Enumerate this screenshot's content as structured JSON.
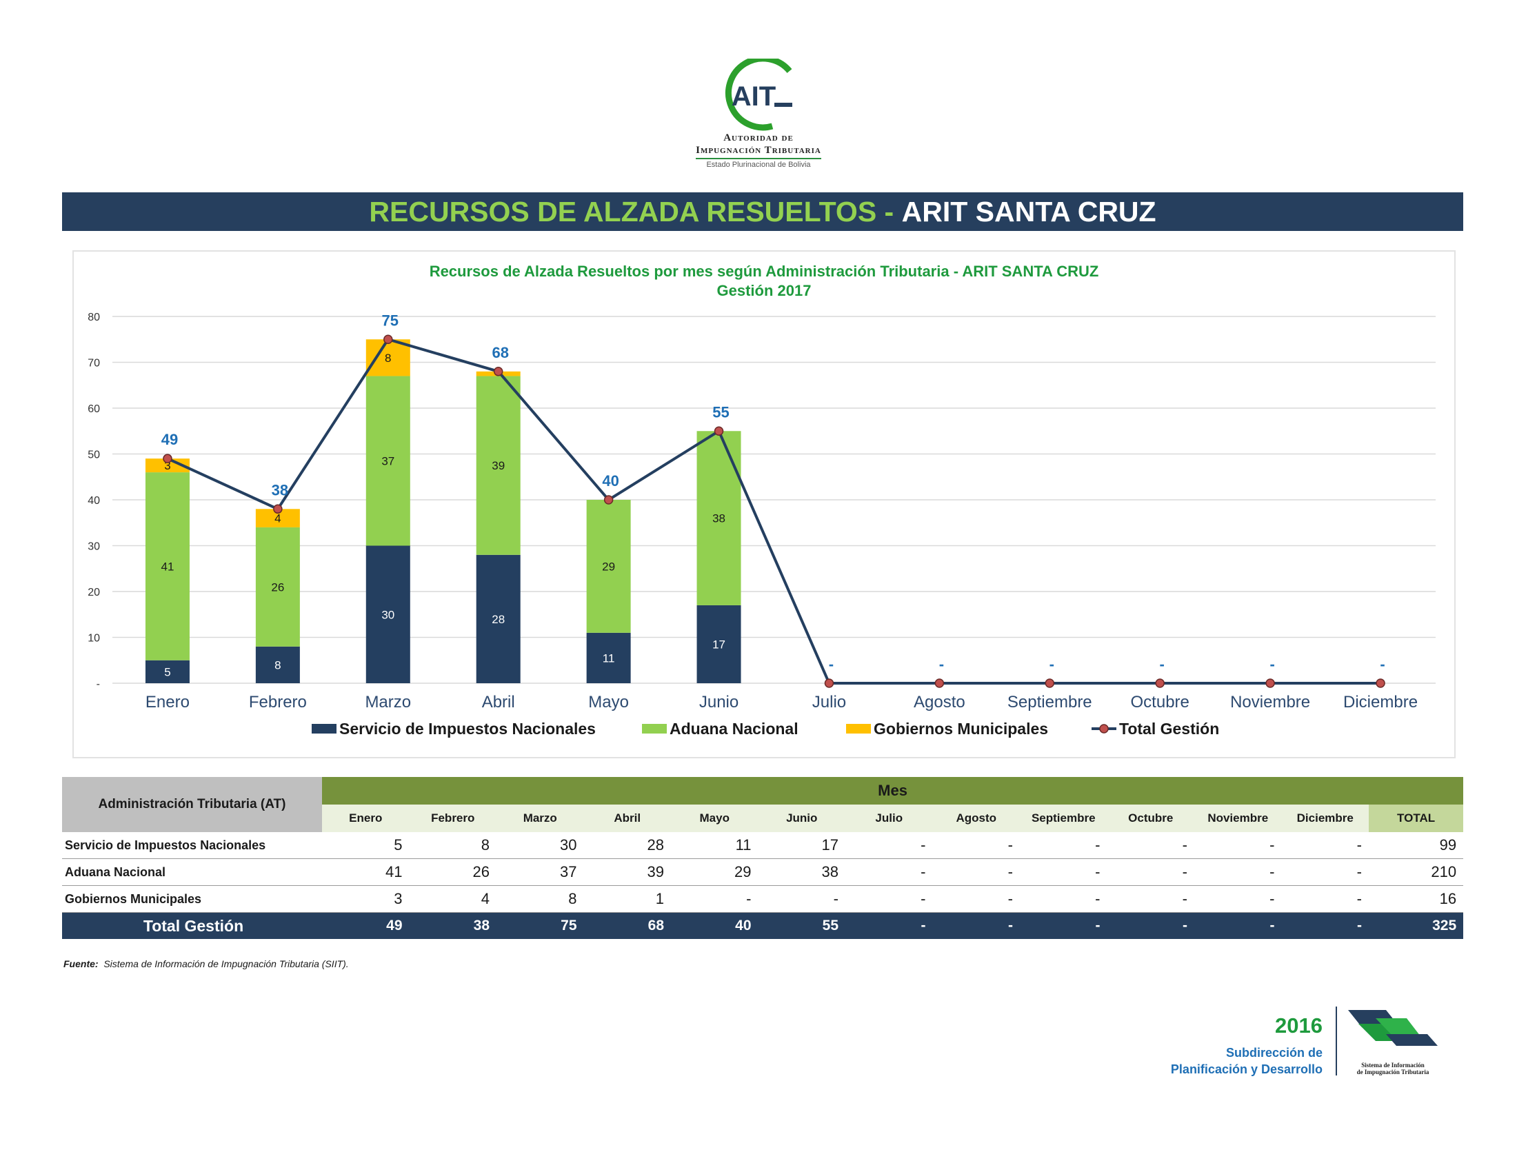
{
  "logo": {
    "mark": "AIT",
    "line1": "Autoridad de",
    "line2": "Impugnación Tributaria",
    "line3": "Estado Plurinacional de Bolivia"
  },
  "header": {
    "title_green": "RECURSOS DE ALZADA RESUELTOS -",
    "title_white": "ARIT SANTA CRUZ"
  },
  "chart_data": {
    "type": "bar",
    "title": "Recursos de Alzada Resueltos por mes según Administración Tributaria - ARIT SANTA CRUZ",
    "subtitle": "Gestión 2017",
    "categories": [
      "Enero",
      "Febrero",
      "Marzo",
      "Abril",
      "Mayo",
      "Junio",
      "Julio",
      "Agosto",
      "Septiembre",
      "Octubre",
      "Noviembre",
      "Diciembre"
    ],
    "ylim": [
      0,
      80
    ],
    "yticks": [
      "-",
      "10",
      "20",
      "30",
      "40",
      "50",
      "60",
      "70",
      "80"
    ],
    "grid": true,
    "legend_placement": "bottom",
    "stacked": true,
    "series": [
      {
        "name": "Servicio de Impuestos Nacionales",
        "type": "bar",
        "color": "#243f60",
        "values": [
          5,
          8,
          30,
          28,
          11,
          17,
          0,
          0,
          0,
          0,
          0,
          0
        ],
        "labels": [
          "5",
          "8",
          "30",
          "28",
          "11",
          "17",
          "",
          "",
          "",
          "",
          "",
          ""
        ]
      },
      {
        "name": "Aduana Nacional",
        "type": "bar",
        "color": "#92d050",
        "values": [
          41,
          26,
          37,
          39,
          29,
          38,
          0,
          0,
          0,
          0,
          0,
          0
        ],
        "labels": [
          "41",
          "26",
          "37",
          "39",
          "29",
          "38",
          "",
          "",
          "",
          "",
          "",
          ""
        ]
      },
      {
        "name": "Gobiernos Municipales",
        "type": "bar",
        "color": "#ffc000",
        "values": [
          3,
          4,
          8,
          1,
          0,
          0,
          0,
          0,
          0,
          0,
          0,
          0
        ],
        "labels": [
          "3",
          "4",
          "8",
          "",
          "",
          "",
          "",
          "",
          "",
          "",
          "",
          ""
        ]
      },
      {
        "name": "Total Gestión",
        "type": "line",
        "color": "#243f60",
        "marker_color": "#c0504d",
        "values": [
          49,
          38,
          75,
          68,
          40,
          55,
          0,
          0,
          0,
          0,
          0,
          0
        ],
        "labels": [
          "49",
          "38",
          "75",
          "68",
          "40",
          "55",
          "-",
          "-",
          "-",
          "-",
          "-",
          "-"
        ]
      }
    ]
  },
  "table": {
    "header_at": "Administración Tributaria (AT)",
    "header_mes": "Mes",
    "months": [
      "Enero",
      "Febrero",
      "Marzo",
      "Abril",
      "Mayo",
      "Junio",
      "Julio",
      "Agosto",
      "Septiembre",
      "Octubre",
      "Noviembre",
      "Diciembre"
    ],
    "header_total": "TOTAL",
    "rows": [
      {
        "label": "Servicio de Impuestos Nacionales",
        "values": [
          "5",
          "8",
          "30",
          "28",
          "11",
          "17",
          "-",
          "-",
          "-",
          "-",
          "-",
          "-"
        ],
        "total": "99"
      },
      {
        "label": "Aduana Nacional",
        "values": [
          "41",
          "26",
          "37",
          "39",
          "29",
          "38",
          "-",
          "-",
          "-",
          "-",
          "-",
          "-"
        ],
        "total": "210"
      },
      {
        "label": "Gobiernos Municipales",
        "values": [
          "3",
          "4",
          "8",
          "1",
          "-",
          "-",
          "-",
          "-",
          "-",
          "-",
          "-",
          "-"
        ],
        "total": "16"
      }
    ],
    "total_row": {
      "label": "Total Gestión",
      "values": [
        "49",
        "38",
        "75",
        "68",
        "40",
        "55",
        "-",
        "-",
        "-",
        "-",
        "-",
        "-"
      ],
      "total": "325"
    }
  },
  "source": {
    "label": "Fuente:",
    "text": "Sistema de Información de Impugnación Tributaria (SIIT)."
  },
  "footer": {
    "year": "2016",
    "line1": "Subdirección de",
    "line2": "Planificación y Desarrollo",
    "logo_line1": "Sistema de Información",
    "logo_line2": "de Impugnación Tributaria"
  }
}
